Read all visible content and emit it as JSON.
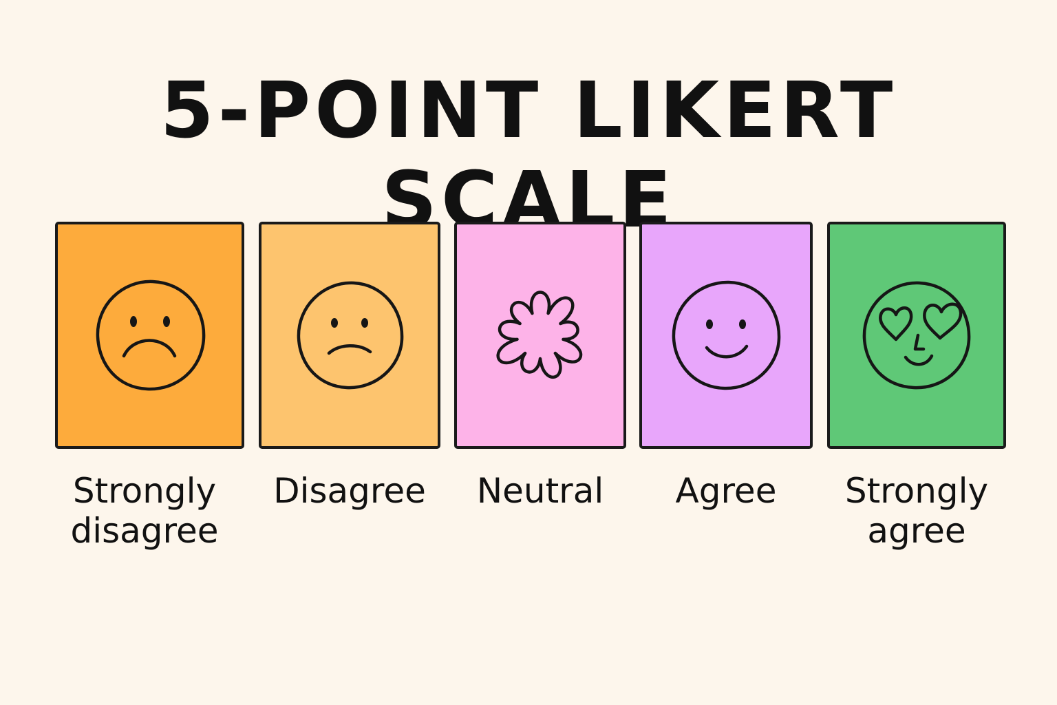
{
  "title": "5-POINT LIKERT SCALE",
  "scale": {
    "options": [
      {
        "label": "Strongly\ndisagree",
        "color": "#fdab3c",
        "icon": "very-sad-face-icon"
      },
      {
        "label": "Disagree",
        "color": "#fdc46e",
        "icon": "sad-face-icon"
      },
      {
        "label": "Neutral",
        "color": "#fdb3e8",
        "icon": "flower-burst-icon"
      },
      {
        "label": "Agree",
        "color": "#e8a6fb",
        "icon": "smiling-face-icon"
      },
      {
        "label": "Strongly\nagree",
        "color": "#5fc877",
        "icon": "heart-eyes-face-icon"
      }
    ]
  }
}
